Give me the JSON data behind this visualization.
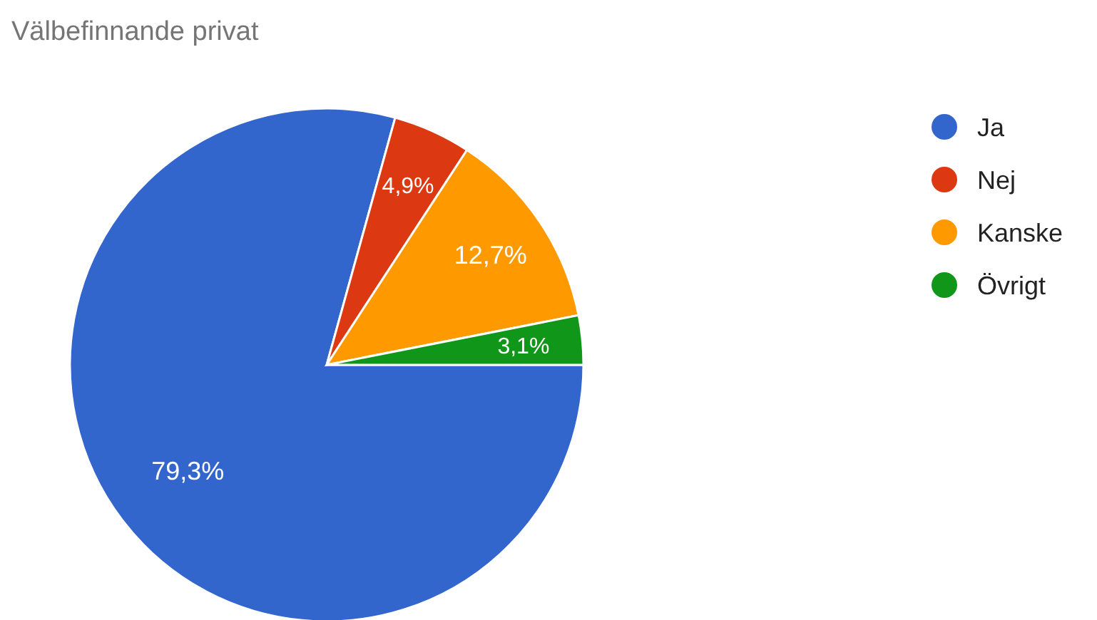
{
  "chart_data": {
    "type": "pie",
    "title": "Välbefinnande privat",
    "categories": [
      "Ja",
      "Nej",
      "Kanske",
      "Övrigt"
    ],
    "values": [
      79.3,
      4.9,
      12.7,
      3.1
    ],
    "colors": [
      "#3366cc",
      "#dc3912",
      "#ff9900",
      "#109618"
    ],
    "value_labels": [
      "79,3%",
      "4,9%",
      "12,7%",
      "3,1%"
    ],
    "legend": "right"
  }
}
